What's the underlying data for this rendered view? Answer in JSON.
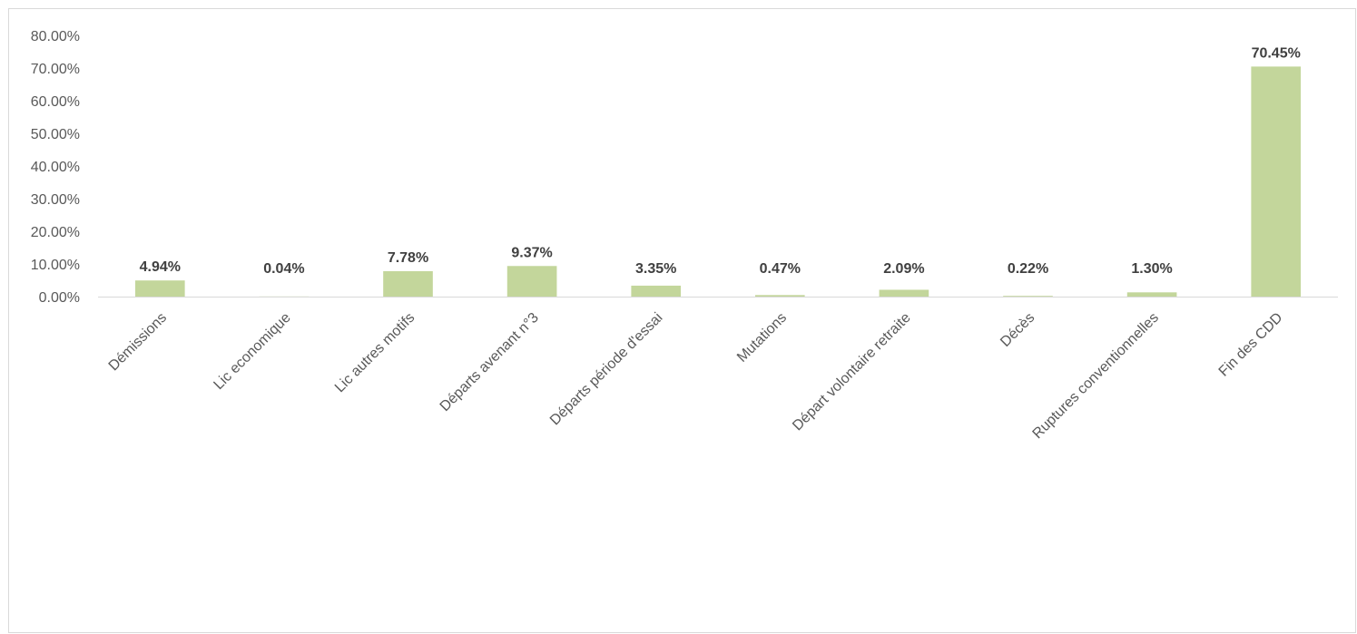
{
  "chart_data": {
    "type": "bar",
    "title": "",
    "xlabel": "",
    "ylabel": "",
    "categories": [
      "Démissions",
      "Lic economique",
      "Lic autres motifs",
      "Départs avenant n°3",
      "Départs période d'essai",
      "Mutations",
      "Départ volontaire retraite",
      "Décès",
      "Ruptures conventionnelles",
      "Fin des CDD"
    ],
    "values": [
      4.94,
      0.04,
      7.78,
      9.37,
      3.35,
      0.47,
      2.09,
      0.22,
      1.3,
      70.45
    ],
    "data_labels": [
      "4.94%",
      "0.04%",
      "7.78%",
      "9.37%",
      "3.35%",
      "0.47%",
      "2.09%",
      "0.22%",
      "1.30%",
      "70.45%"
    ],
    "ylim": [
      0,
      80
    ],
    "y_ticks": [
      0,
      10,
      20,
      30,
      40,
      50,
      60,
      70,
      80
    ],
    "y_tick_labels": [
      "0.00%",
      "10.00%",
      "20.00%",
      "30.00%",
      "40.00%",
      "50.00%",
      "60.00%",
      "70.00%",
      "80.00%"
    ],
    "grid": false,
    "legend": "none",
    "bar_color": "#c3d69b",
    "axis_color": "#d9d9d9",
    "text_color": "#595959",
    "data_label_color": "#404040"
  }
}
